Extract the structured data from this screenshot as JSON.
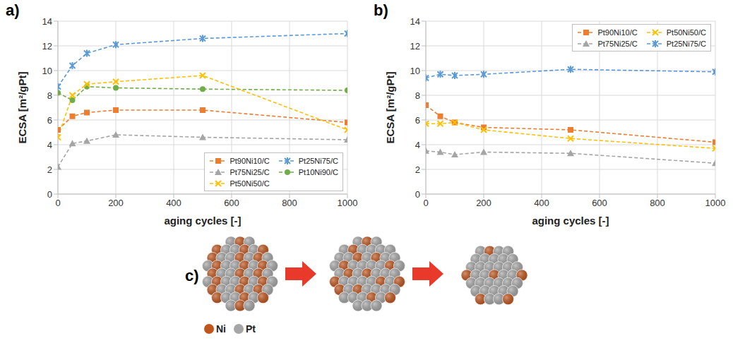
{
  "chart_data": [
    {
      "type": "line",
      "title": "a)",
      "xlabel": "aging cycles [-]",
      "ylabel": "ECSA [m²/gPt]",
      "x": [
        0,
        50,
        100,
        200,
        500,
        1000
      ],
      "xlim": [
        0,
        1000
      ],
      "xticks": [
        0,
        200,
        400,
        600,
        800,
        1000
      ],
      "ylim": [
        0,
        14
      ],
      "yticks": [
        0,
        2,
        4,
        6,
        8,
        10,
        12,
        14
      ],
      "grid": true,
      "legend": "lower right",
      "line_style": "dashed",
      "series": [
        {
          "name": "Pt90Ni10/C",
          "color": "#ed7d31",
          "marker": "square",
          "values": [
            5.2,
            6.3,
            6.6,
            6.8,
            6.8,
            5.8
          ]
        },
        {
          "name": "Pt25Ni75/C",
          "color": "#5b9bd5",
          "marker": "asterisk",
          "values": [
            8.7,
            10.4,
            11.4,
            12.1,
            12.6,
            13.0
          ]
        },
        {
          "name": "Pt75Ni25/C",
          "color": "#a5a5a5",
          "marker": "triangle",
          "values": [
            2.2,
            4.1,
            4.3,
            4.8,
            4.6,
            4.4
          ]
        },
        {
          "name": "Pt10Ni90/C",
          "color": "#70ad47",
          "marker": "circle",
          "values": [
            8.2,
            7.6,
            8.7,
            8.6,
            8.5,
            8.4
          ]
        },
        {
          "name": "Pt50Ni50/C",
          "color": "#ffc000",
          "marker": "x",
          "values": [
            4.6,
            8.0,
            8.9,
            9.1,
            9.6,
            5.2
          ]
        }
      ]
    },
    {
      "type": "line",
      "title": "b)",
      "xlabel": "aging cycles [-]",
      "ylabel": "ECSA [m²/gPt]",
      "x": [
        0,
        50,
        100,
        200,
        500,
        1000
      ],
      "xlim": [
        0,
        1000
      ],
      "xticks": [
        0,
        200,
        400,
        600,
        800,
        1000
      ],
      "ylim": [
        0,
        14
      ],
      "yticks": [
        0,
        2,
        4,
        6,
        8,
        10,
        12,
        14
      ],
      "grid": true,
      "legend": "upper right",
      "line_style": "dashed",
      "series": [
        {
          "name": "Pt90Ni10/C",
          "color": "#ed7d31",
          "marker": "square",
          "values": [
            7.2,
            6.3,
            5.8,
            5.4,
            5.2,
            4.2
          ]
        },
        {
          "name": "Pt50Ni50/C",
          "color": "#ffc000",
          "marker": "x",
          "values": [
            5.7,
            5.7,
            5.8,
            5.2,
            4.5,
            3.7
          ]
        },
        {
          "name": "Pt75Ni25/C",
          "color": "#a5a5a5",
          "marker": "triangle",
          "values": [
            3.5,
            3.4,
            3.2,
            3.4,
            3.3,
            2.5
          ]
        },
        {
          "name": "Pt25Ni75/C",
          "color": "#5b9bd5",
          "marker": "asterisk",
          "values": [
            9.4,
            9.7,
            9.6,
            9.7,
            10.1,
            9.9
          ]
        }
      ]
    }
  ],
  "diagram": {
    "label": "c)",
    "legend": [
      {
        "label": "Ni",
        "color": "#c0561e"
      },
      {
        "label": "Pt",
        "color": "#a6a6a6"
      }
    ]
  }
}
